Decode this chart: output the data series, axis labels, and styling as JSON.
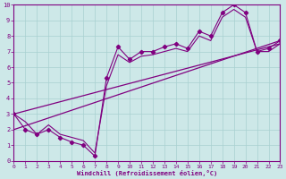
{
  "xlabel": "Windchill (Refroidissement éolien,°C)",
  "background_color": "#cde8e8",
  "line_color": "#800080",
  "grid_color": "#a8d0d0",
  "xlim": [
    0,
    23
  ],
  "ylim": [
    0,
    10
  ],
  "xticks": [
    0,
    1,
    2,
    3,
    4,
    5,
    6,
    7,
    8,
    9,
    10,
    11,
    12,
    13,
    14,
    15,
    16,
    17,
    18,
    19,
    20,
    21,
    22,
    23
  ],
  "yticks": [
    0,
    1,
    2,
    3,
    4,
    5,
    6,
    7,
    8,
    9,
    10
  ],
  "data_x": [
    0,
    1,
    2,
    3,
    4,
    5,
    6,
    7,
    8,
    9,
    10,
    11,
    12,
    13,
    14,
    15,
    16,
    17,
    18,
    19,
    20,
    21,
    22,
    23
  ],
  "data_y1": [
    3.0,
    2.0,
    1.7,
    2.0,
    1.5,
    1.2,
    1.0,
    0.3,
    5.3,
    7.3,
    6.5,
    7.0,
    7.0,
    7.3,
    7.5,
    7.2,
    8.3,
    8.0,
    9.5,
    10.0,
    9.5,
    7.0,
    7.2,
    7.7
  ],
  "data_y2": [
    3.0,
    2.5,
    1.7,
    2.3,
    1.7,
    1.5,
    1.3,
    0.5,
    4.8,
    6.8,
    6.3,
    6.7,
    6.8,
    7.0,
    7.2,
    7.0,
    8.0,
    7.7,
    9.2,
    9.7,
    9.2,
    7.0,
    7.0,
    7.5
  ],
  "trend_x": [
    0,
    23
  ],
  "trend_y": [
    2.0,
    7.7
  ],
  "trend2_x": [
    0,
    23
  ],
  "trend2_y": [
    3.0,
    7.5
  ]
}
